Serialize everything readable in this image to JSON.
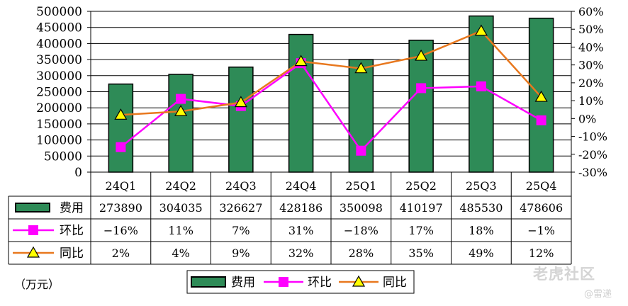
{
  "chart_data": {
    "type": "bar+line",
    "categories": [
      "24Q1",
      "24Q2",
      "24Q3",
      "24Q4",
      "25Q1",
      "25Q2",
      "25Q3",
      "25Q4"
    ],
    "left_axis": {
      "ticks": [
        0,
        50000,
        100000,
        150000,
        200000,
        250000,
        300000,
        350000,
        400000,
        450000,
        500000
      ],
      "ylim": [
        0,
        500000
      ]
    },
    "right_axis": {
      "ticks": [
        "-30%",
        "-20%",
        "-10%",
        "0%",
        "10%",
        "20%",
        "30%",
        "40%",
        "50%",
        "60%"
      ],
      "ylim": [
        -30,
        60
      ]
    },
    "series": [
      {
        "name": "费用",
        "kind": "bar",
        "axis": "left",
        "color": "#2e8b57",
        "values": [
          273890,
          304035,
          326627,
          428186,
          350098,
          410197,
          485530,
          478606
        ],
        "labels": [
          "273890",
          "304035",
          "326627",
          "428186",
          "350098",
          "410197",
          "485530",
          "478606"
        ]
      },
      {
        "name": "环比",
        "kind": "line",
        "axis": "right",
        "color": "#ff00ff",
        "marker": "square",
        "values": [
          -16,
          11,
          7,
          31,
          -18,
          17,
          18,
          -1
        ],
        "labels": [
          "−16%",
          "11%",
          "7%",
          "31%",
          "−18%",
          "17%",
          "18%",
          "−1%"
        ]
      },
      {
        "name": "同比",
        "kind": "line",
        "axis": "right",
        "color": "#e8781e",
        "marker": "triangle",
        "marker_fill": "#ffff00",
        "values": [
          2,
          4,
          9,
          32,
          28,
          35,
          49,
          12
        ],
        "labels": [
          "2%",
          "4%",
          "9%",
          "32%",
          "28%",
          "35%",
          "49%",
          "12%"
        ]
      }
    ],
    "unit_label": "（万元）",
    "legend": [
      "费用",
      "环比",
      "同比"
    ],
    "legend_position": "bottom"
  },
  "watermark": {
    "logo_text": "老虎社区",
    "sub_text": "@雷递"
  }
}
